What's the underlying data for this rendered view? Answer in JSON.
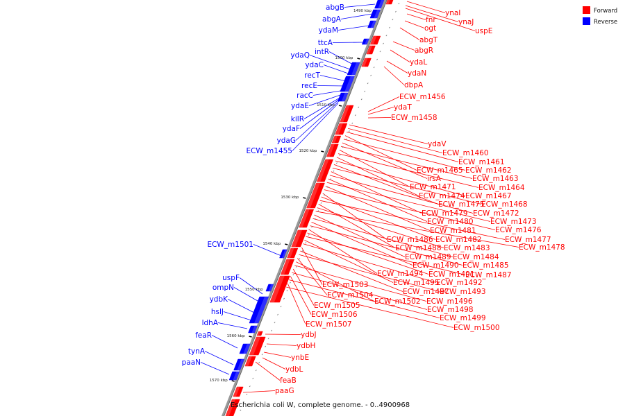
{
  "title": "Escherichia coli W, complete genome. - 0..4900968",
  "legend": [
    {
      "label": "Forward",
      "color": "#ff0000"
    },
    {
      "label": "Reverse",
      "color": "#0000ff"
    }
  ],
  "colors": {
    "forward": "#ff0000",
    "reverse": "#0000ff",
    "backbone": "#888888"
  },
  "backbone_ticks": [
    "1490 kbp",
    "1500 kbp",
    "1510 kbp",
    "1520 kbp",
    "1530 kbp",
    "1540 kbp",
    "1550 kbp",
    "1560 kbp",
    "1570 kbp"
  ],
  "reverse_genes": [
    "abgB",
    "abgA",
    "ydaM",
    "ttcA",
    "intR",
    "ydaQ",
    "ydaC",
    "recT",
    "recE",
    "racC",
    "ydaE",
    "kilR",
    "ydaF",
    "ydaG",
    "ECW_m1455",
    "ECW_m1501",
    "uspF",
    "ompN",
    "ydbK",
    "hslJ",
    "ldhA",
    "feaR",
    "tynA",
    "paaN"
  ],
  "forward_genes_top": [
    "ynaI",
    "ynaJ",
    "fnr",
    "ogt",
    "uspE",
    "abgT",
    "abgR",
    "ydaL",
    "ydaN",
    "dbpA",
    "ECW_m1456",
    "ydaT",
    "ECW_m1458"
  ],
  "forward_genes_fan": [
    "ydaV",
    "ECW_m1460",
    "ECW_m1461",
    "ECW_m1465",
    "ECW_m1462",
    "irsA",
    "ECW_m1463",
    "ECW_m1471",
    "ECW_m1464",
    "ECW_m1474",
    "ECW_m1467",
    "ECW_m1475",
    "ECW_m1468",
    "ECW_m1479",
    "ECW_m1472",
    "ECW_m1480",
    "ECW_m1473",
    "ECW_m1481",
    "ECW_m1476",
    "ECW_m1486",
    "ECW_m1482",
    "ECW_m1477",
    "ECW_m1488",
    "ECW_m1483",
    "ECW_m1478",
    "ECW_m1489",
    "ECW_m1484",
    "ECW_m1490",
    "ECW_m1485",
    "ECW_m1494",
    "ECW_m1491",
    "ECW_m1487",
    "ECW_m1495",
    "ECW_m1492",
    "ECW_m1503",
    "ECW_m1497",
    "ECW_m1493",
    "ECW_m1504",
    "ECW_m1502",
    "ECW_m1496",
    "ECW_m1505",
    "ECW_m1498",
    "ECW_m1506",
    "ECW_m1499",
    "ECW_m1507",
    "ECW_m1500"
  ],
  "forward_genes_bottom": [
    "ydbJ",
    "ydbH",
    "ynbE",
    "ydbL",
    "feaB",
    "paaG"
  ]
}
